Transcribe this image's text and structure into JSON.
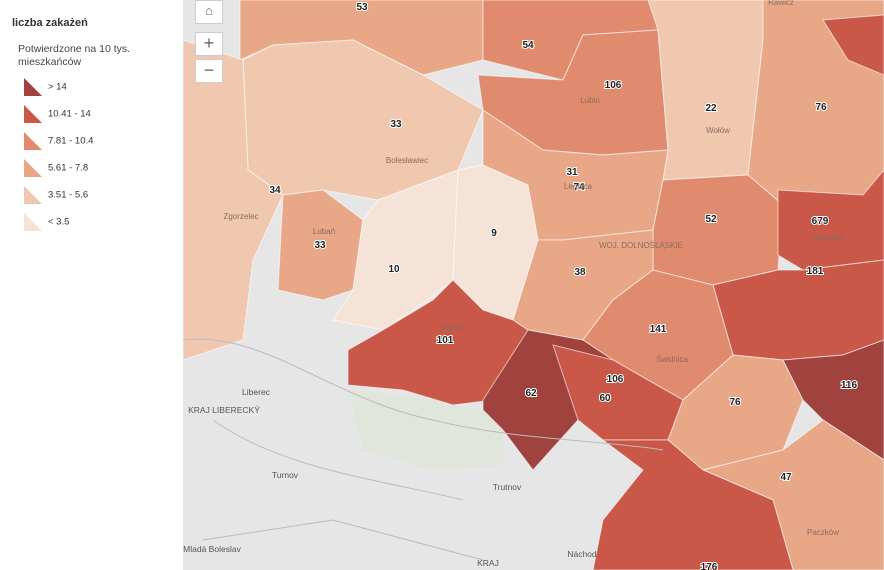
{
  "legend": {
    "title": "liczba zakażeń",
    "subtitle": "Potwierdzone na 10 tys. mieszkańców",
    "classes": [
      {
        "label": "> 14",
        "color": "#a0433e"
      },
      {
        "label": "10.41 - 14",
        "color": "#c95848"
      },
      {
        "label": "7.81 - 10.4",
        "color": "#e08b6e"
      },
      {
        "label": "5.61 - 7.8",
        "color": "#e8a888"
      },
      {
        "label": "3.51 - 5.6",
        "color": "#f0c8b0"
      },
      {
        "label": "< 3.5",
        "color": "#f6e3d8"
      }
    ]
  },
  "map": {
    "counts": [
      53,
      54,
      106,
      22,
      76,
      33,
      31,
      74,
      34,
      33,
      10,
      9,
      52,
      679,
      181,
      38,
      141,
      101,
      62,
      106,
      60,
      76,
      116,
      47,
      176
    ],
    "places": [
      "Rawicz",
      "Lubin",
      "Wołów",
      "Bolesławiec",
      "Legnica",
      "Zgorzelec",
      "Lubań",
      "Wrocław",
      "WOJ. DOLNOŚLĄSKIE",
      "Jelenia",
      "Świdnica",
      "Liberec",
      "KRAJ LIBERECKÝ",
      "Turnov",
      "Trutnov",
      "Mladá Boleslav",
      "Náchod",
      "KRAJ",
      "Paczków"
    ]
  }
}
